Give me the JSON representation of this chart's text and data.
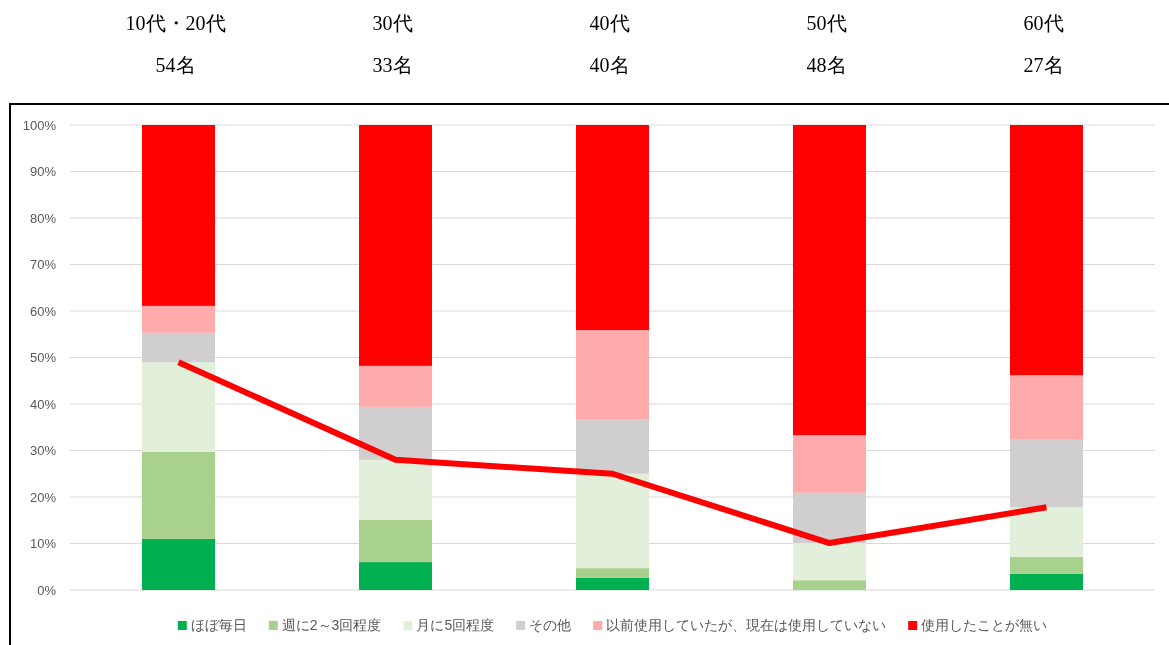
{
  "chart_data": {
    "type": "bar",
    "stacked": true,
    "categories": [
      "10代・20代\n54名",
      "30代\n33名",
      "40代\n40名",
      "50代\n48名",
      "60代\n27名"
    ],
    "series": [
      {
        "name": "ほぼ毎日",
        "color": "#00b050",
        "values": [
          11.0,
          6.0,
          2.6,
          0,
          3.5
        ]
      },
      {
        "name": "週に2～3回程度",
        "color": "#a9d18e",
        "values": [
          18.7,
          9.1,
          2.1,
          2.1,
          3.6
        ]
      },
      {
        "name": "月に5回程度",
        "color": "#e2efda",
        "values": [
          19.3,
          12.9,
          20.3,
          8.0,
          10.7
        ]
      },
      {
        "name": "その他",
        "color": "#d0cece",
        "values": [
          6.3,
          11.4,
          11.6,
          10.8,
          14.5
        ]
      },
      {
        "name": "以前使用していたが、現在は使用していない",
        "color": "#ffabab",
        "values": [
          5.8,
          8.8,
          19.3,
          12.4,
          13.9
        ]
      },
      {
        "name": "使用したことが無い",
        "color": "#ff0000",
        "values": [
          38.9,
          51.8,
          44.1,
          66.7,
          53.8
        ]
      },
      {
        "type": "line",
        "color": "#ff0000",
        "values": [
          49.0,
          28.0,
          25.0,
          10.1,
          17.8
        ]
      }
    ],
    "ylim": [
      0,
      100
    ],
    "yticks": [
      {
        "value": 0,
        "label": "0%"
      },
      {
        "value": 10,
        "label": "10%"
      },
      {
        "value": 20,
        "label": "20%"
      },
      {
        "value": 30,
        "label": "30%"
      },
      {
        "value": 40,
        "label": "40%"
      },
      {
        "value": 50,
        "label": "50%"
      },
      {
        "value": 60,
        "label": "60%"
      },
      {
        "value": 70,
        "label": "70%"
      },
      {
        "value": 80,
        "label": "80%"
      },
      {
        "value": 90,
        "label": "90%"
      },
      {
        "value": 100,
        "label": "100%"
      }
    ],
    "grid": "y",
    "legend": "bottom",
    "tick_labels": "y",
    "line_style": "solid"
  }
}
